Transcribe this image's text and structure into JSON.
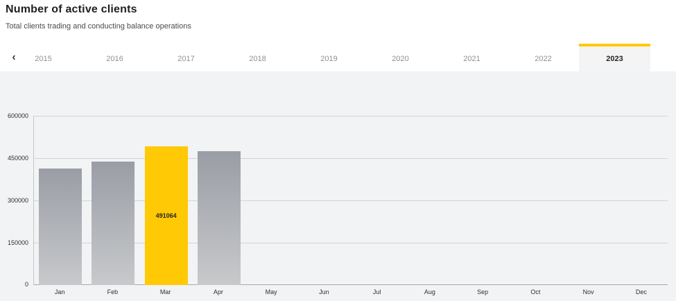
{
  "header": {
    "title": "Number of active clients",
    "subtitle": "Total clients trading and conducting balance operations"
  },
  "icons": {
    "chevron_left": "‹"
  },
  "tabs": {
    "years": [
      "2015",
      "2016",
      "2017",
      "2018",
      "2019",
      "2020",
      "2021",
      "2022",
      "2023"
    ],
    "selected": "2023"
  },
  "colors": {
    "accent_yellow": "#ffc905",
    "bar_gradient_top": "#9a9da5",
    "bar_gradient_bottom": "#c7c9cb",
    "chart_background": "#f2f3f5",
    "gridline": "#d2d3d5",
    "axis_line": "#a8a9ab"
  },
  "chart_data": {
    "type": "bar",
    "title": "Number of active clients",
    "categories": [
      "Jan",
      "Feb",
      "Mar",
      "Apr",
      "May",
      "Jun",
      "Jul",
      "Aug",
      "Sep",
      "Oct",
      "Nov",
      "Dec"
    ],
    "values": [
      412000,
      437000,
      491064,
      474000,
      null,
      null,
      null,
      null,
      null,
      null,
      null,
      null
    ],
    "data_labels": [
      null,
      null,
      "491064",
      null,
      null,
      null,
      null,
      null,
      null,
      null,
      null,
      null
    ],
    "highlight_index": 2,
    "yticks": [
      0,
      150000,
      300000,
      450000,
      600000
    ],
    "ylim": [
      0,
      600000
    ],
    "xlabel": "",
    "ylabel": "",
    "grid": true,
    "legend": false
  }
}
